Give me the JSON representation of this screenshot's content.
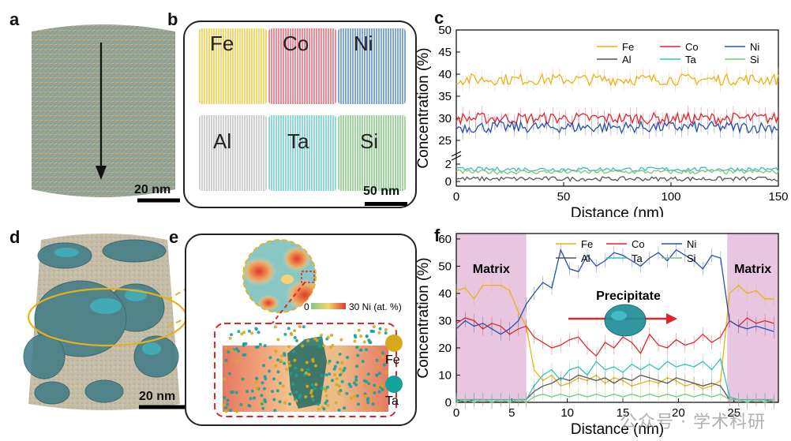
{
  "panels": {
    "a": {
      "label": "a",
      "scale": "20 nm"
    },
    "b": {
      "label": "b",
      "scale": "50 nm",
      "elements": [
        {
          "name": "Fe",
          "color": "#f3d56a"
        },
        {
          "name": "Co",
          "color": "#f08a97"
        },
        {
          "name": "Ni",
          "color": "#7ea6d8"
        },
        {
          "name": "Al",
          "color": "#cfcfcf"
        },
        {
          "name": "Ta",
          "color": "#8fd9dc"
        },
        {
          "name": "Si",
          "color": "#9fd49f"
        }
      ]
    },
    "d": {
      "label": "d",
      "scale": "20 nm"
    },
    "e": {
      "label": "e",
      "colorbar_min": "0",
      "colorbar_max": "30 Ni (at. %)",
      "legend": [
        {
          "name": "Fe",
          "color": "#d6a91d"
        },
        {
          "name": "Ta",
          "color": "#14a39b"
        }
      ]
    }
  },
  "chart_data": [
    {
      "id": "c",
      "label": "c",
      "type": "line",
      "xlabel": "Distance (nm)",
      "ylabel": "Concentration (%)",
      "xlim": [
        0,
        150
      ],
      "xticks": [
        0,
        50,
        100,
        150
      ],
      "yticks": [
        0,
        2,
        25,
        30,
        35,
        40,
        45,
        50
      ],
      "broken_axis": true,
      "series": [
        {
          "name": "Fe",
          "color": "#e8b21a",
          "level": 38.8
        },
        {
          "name": "Co",
          "color": "#e0262a",
          "level": 30.0
        },
        {
          "name": "Ni",
          "color": "#2a4fa8",
          "level": 28.0
        },
        {
          "name": "Al",
          "color": "#555555",
          "level": 0.3
        },
        {
          "name": "Ta",
          "color": "#36bfb7",
          "level": 1.4
        },
        {
          "name": "Si",
          "color": "#7dc47d",
          "level": 1.1
        }
      ]
    },
    {
      "id": "f",
      "label": "f",
      "type": "line",
      "xlabel": "Distance (nm)",
      "ylabel": "Concentration (%)",
      "xlim": [
        0,
        29
      ],
      "ylim": [
        0,
        62
      ],
      "xticks": [
        0,
        5,
        10,
        15,
        20,
        25
      ],
      "yticks": [
        0,
        10,
        20,
        30,
        40,
        50,
        60
      ],
      "regions": [
        {
          "label": "Matrix",
          "from": 0,
          "to": 6.3
        },
        {
          "label": "Matrix",
          "from": 24.4,
          "to": 29
        }
      ],
      "region_color": "#e8c6e0",
      "annotation": "Precipitate",
      "x": [
        0,
        0.8,
        1.6,
        2.4,
        3.2,
        4.0,
        4.8,
        5.6,
        6.3,
        7.0,
        7.8,
        8.6,
        9.4,
        10.2,
        11.0,
        11.8,
        12.6,
        13.4,
        14.2,
        15.0,
        15.8,
        16.6,
        17.4,
        18.2,
        19.0,
        19.8,
        20.6,
        21.4,
        22.2,
        23.0,
        23.8,
        24.6,
        25.4,
        26.2,
        27.0,
        27.8,
        28.6
      ],
      "series": [
        {
          "name": "Fe",
          "color": "#e8b21a",
          "values": [
            41,
            42,
            38,
            43,
            43,
            43,
            41,
            33,
            28,
            12,
            8,
            10,
            6,
            7,
            9,
            8,
            10,
            7,
            9,
            8,
            6,
            7,
            8,
            7,
            9,
            8,
            6,
            7,
            5,
            6,
            8,
            40,
            43,
            40,
            41,
            38,
            38
          ]
        },
        {
          "name": "Co",
          "color": "#e0262a",
          "values": [
            29,
            31,
            30,
            27,
            29,
            28,
            25,
            27,
            28,
            24,
            22,
            20,
            21,
            23,
            24,
            20,
            17,
            22,
            20,
            24,
            22,
            18,
            25,
            21,
            20,
            23,
            21,
            22,
            25,
            22,
            24,
            30,
            28,
            31,
            29,
            30,
            29
          ]
        },
        {
          "name": "Ni",
          "color": "#2a4fa8",
          "values": [
            27,
            30,
            28,
            29,
            27,
            25,
            27,
            30,
            36,
            40,
            44,
            42,
            56,
            49,
            48,
            54,
            50,
            52,
            55,
            54,
            52,
            50,
            53,
            55,
            52,
            56,
            54,
            52,
            49,
            54,
            53,
            30,
            28,
            27,
            28,
            27,
            26
          ]
        },
        {
          "name": "Al",
          "color": "#555555",
          "values": [
            1,
            0,
            1,
            1,
            0,
            1,
            0,
            1,
            1,
            4,
            6,
            7,
            9,
            8,
            10,
            9,
            8,
            9,
            7,
            9,
            8,
            10,
            9,
            8,
            7,
            9,
            8,
            7,
            6,
            7,
            6,
            1,
            1,
            0,
            1,
            1,
            0
          ]
        },
        {
          "name": "Ta",
          "color": "#36bfb7",
          "values": [
            1,
            1,
            1,
            1,
            1,
            1,
            1,
            1,
            1,
            6,
            10,
            12,
            8,
            12,
            13,
            10,
            15,
            12,
            13,
            11,
            14,
            12,
            14,
            12,
            15,
            13,
            14,
            13,
            15,
            12,
            16,
            2,
            1,
            1,
            1,
            1,
            1
          ]
        },
        {
          "name": "Si",
          "color": "#7dc47d",
          "values": [
            0,
            1,
            0,
            1,
            0,
            1,
            0,
            1,
            0,
            2,
            3,
            2,
            3,
            2,
            3,
            2,
            3,
            2,
            3,
            2,
            3,
            2,
            3,
            2,
            3,
            2,
            3,
            2,
            3,
            2,
            3,
            1,
            1,
            0,
            1,
            0,
            1
          ]
        }
      ]
    }
  ],
  "watermark": "公众号 · 学术科研"
}
